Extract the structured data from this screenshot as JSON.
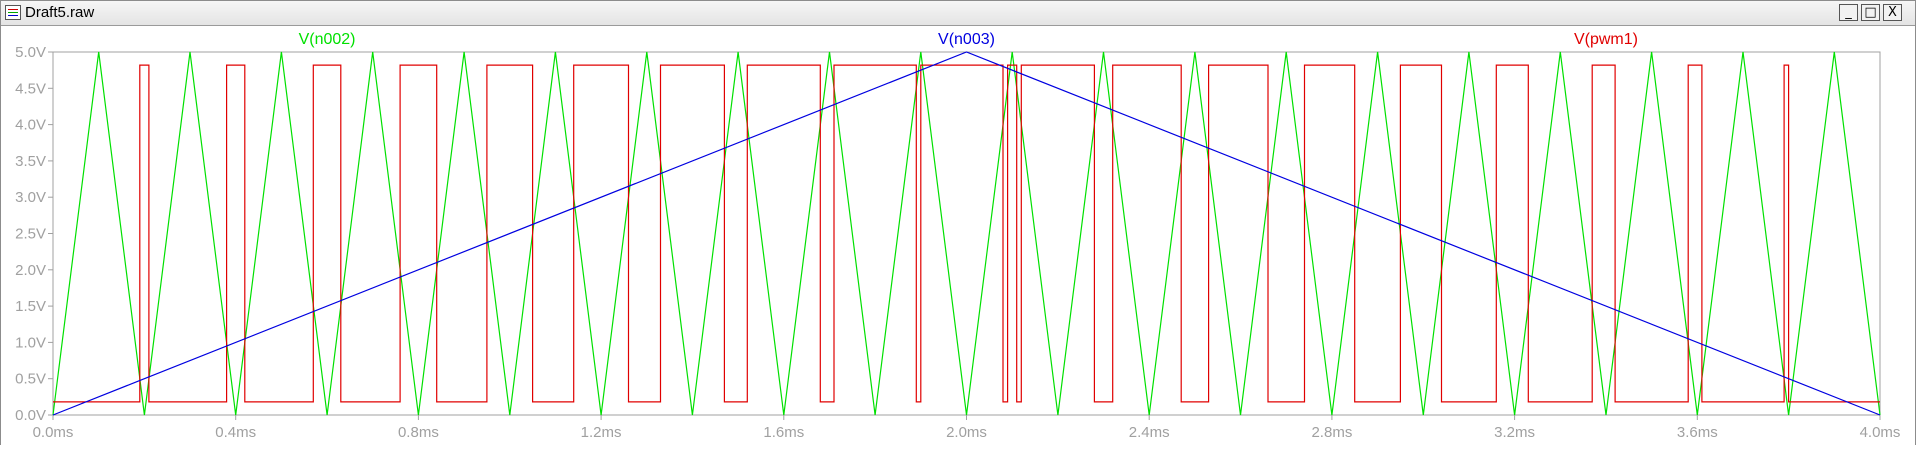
{
  "window": {
    "title": "Draft5.raw",
    "buttons": {
      "minimize": "_",
      "maximize": "□",
      "close": "X"
    }
  },
  "chart_data": {
    "type": "line",
    "xlabel": "",
    "ylabel": "",
    "x_unit": "ms",
    "y_unit": "V",
    "xlim": [
      0.0,
      4.0
    ],
    "ylim": [
      0.0,
      5.0
    ],
    "x_ticks": [
      "0.0ms",
      "0.4ms",
      "0.8ms",
      "1.2ms",
      "1.6ms",
      "2.0ms",
      "2.4ms",
      "2.8ms",
      "3.2ms",
      "3.6ms",
      "4.0ms"
    ],
    "y_ticks": [
      "0.0V",
      "0.5V",
      "1.0V",
      "1.5V",
      "2.0V",
      "2.5V",
      "3.0V",
      "3.5V",
      "4.0V",
      "4.5V",
      "5.0V"
    ],
    "grid": false,
    "legend_position": "top",
    "series": [
      {
        "name": "V(n002)",
        "color": "#00e000",
        "description": "triangle carrier 0-5 V, period 0.2 ms",
        "x": [
          0.0,
          0.1,
          0.2,
          0.3,
          0.4,
          0.5,
          0.6,
          0.7,
          0.8,
          0.9,
          1.0,
          1.1,
          1.2,
          1.3,
          1.4,
          1.5,
          1.6,
          1.7,
          1.8,
          1.9,
          2.0,
          2.1,
          2.2,
          2.3,
          2.4,
          2.5,
          2.6,
          2.7,
          2.8,
          2.9,
          3.0,
          3.1,
          3.2,
          3.3,
          3.4,
          3.5,
          3.6,
          3.7,
          3.8,
          3.9,
          4.0
        ],
        "y": [
          0,
          5,
          0,
          5,
          0,
          5,
          0,
          5,
          0,
          5,
          0,
          5,
          0,
          5,
          0,
          5,
          0,
          5,
          0,
          5,
          0,
          5,
          0,
          5,
          0,
          5,
          0,
          5,
          0,
          5,
          0,
          5,
          0,
          5,
          0,
          5,
          0,
          5,
          0,
          5,
          0
        ]
      },
      {
        "name": "V(n003)",
        "color": "#0000e0",
        "description": "reference triangle 0-5 V, period 4 ms",
        "x": [
          0.0,
          2.0,
          4.0
        ],
        "y": [
          0.0,
          5.0,
          0.0
        ]
      },
      {
        "name": "V(pwm1)",
        "color": "#e00000",
        "description": "PWM output, low 0.18 V, high 4.82 V",
        "low": 0.18,
        "high": 4.82,
        "high_intervals": [
          [
            0.19,
            0.21
          ],
          [
            0.38,
            0.42
          ],
          [
            0.57,
            0.63
          ],
          [
            0.76,
            0.84
          ],
          [
            0.95,
            1.05
          ],
          [
            1.14,
            1.26
          ],
          [
            1.33,
            1.47
          ],
          [
            1.52,
            1.68
          ],
          [
            1.71,
            1.89
          ],
          [
            1.9,
            2.08
          ],
          [
            2.09,
            2.11
          ],
          [
            2.12,
            2.28
          ],
          [
            2.32,
            2.47
          ],
          [
            2.53,
            2.66
          ],
          [
            2.74,
            2.85
          ],
          [
            2.95,
            3.04
          ],
          [
            3.16,
            3.23
          ],
          [
            3.37,
            3.42
          ],
          [
            3.58,
            3.61
          ],
          [
            3.79,
            3.8
          ]
        ]
      }
    ]
  }
}
